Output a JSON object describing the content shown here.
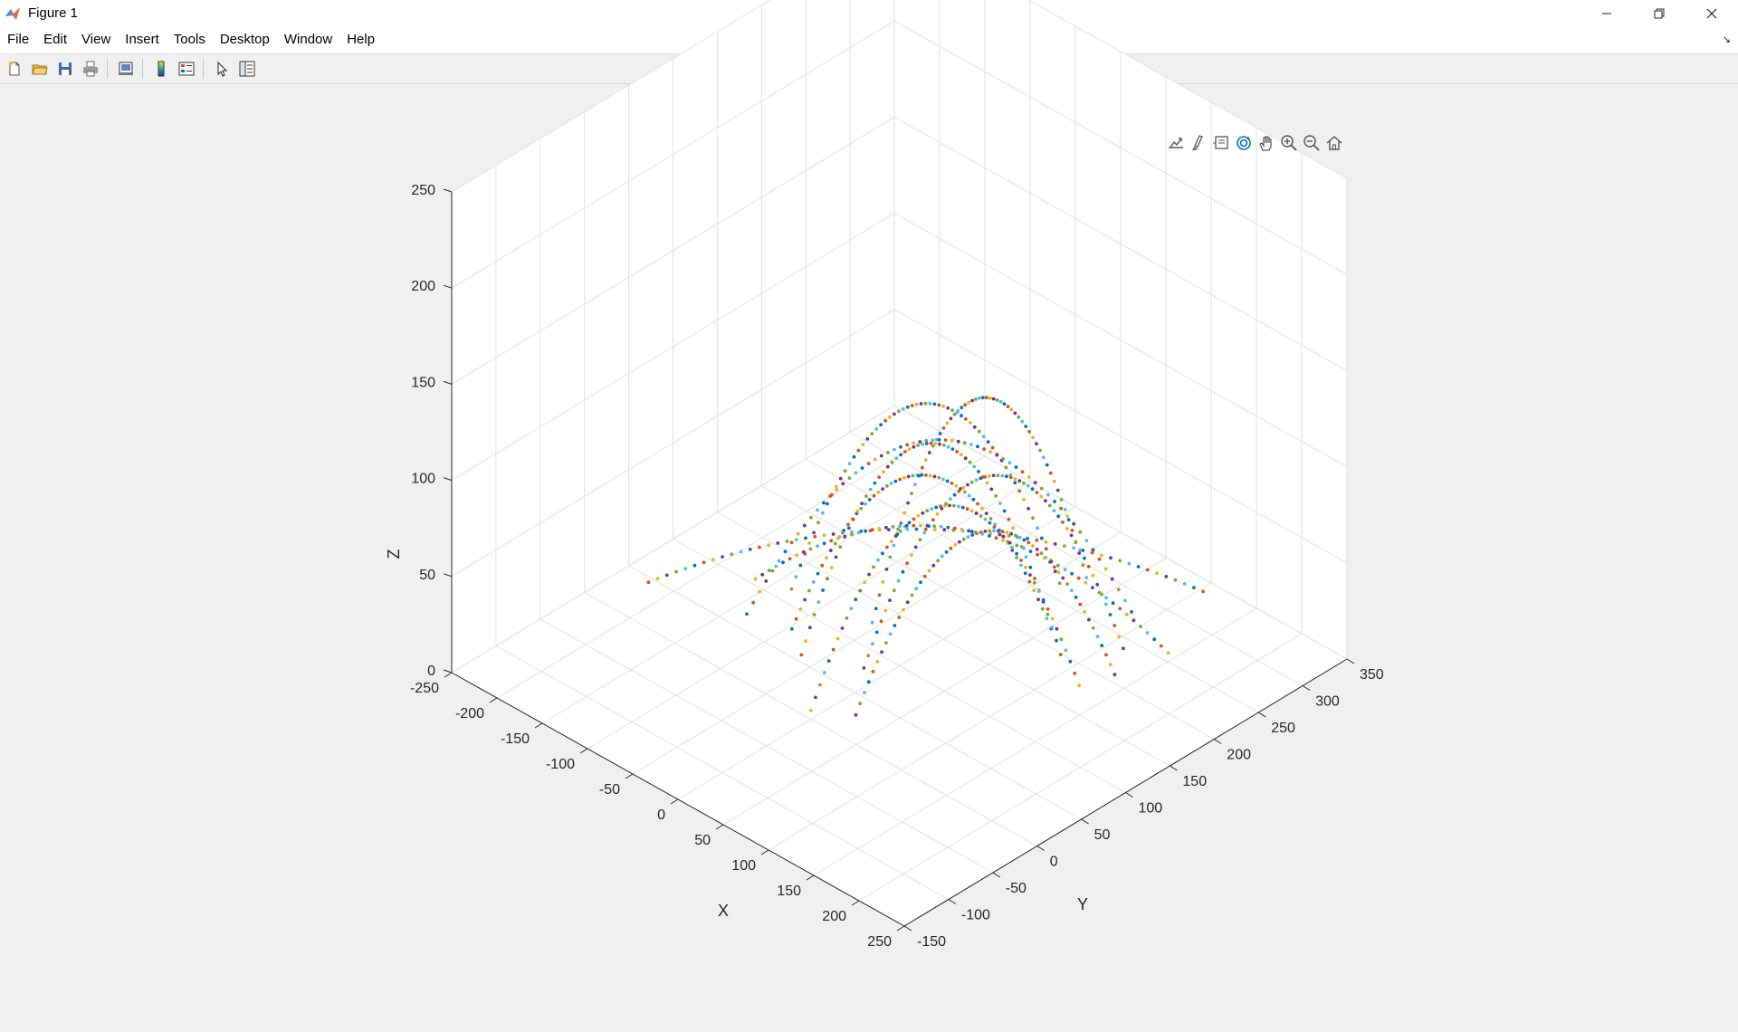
{
  "window": {
    "title": "Figure 1",
    "icons": {
      "app": "matlab-logo-icon",
      "minimize": "minimize-icon",
      "restore": "restore-icon",
      "close": "close-icon"
    }
  },
  "menubar": {
    "items": [
      "File",
      "Edit",
      "View",
      "Insert",
      "Tools",
      "Desktop",
      "Window",
      "Help"
    ]
  },
  "toolbar": {
    "buttons": [
      "new-figure-icon",
      "open-file-icon",
      "save-icon",
      "print-icon",
      "print-preview-icon",
      "colorbar-icon",
      "legend-icon",
      "edit-plot-icon",
      "property-inspector-icon"
    ]
  },
  "axes_toolbar": {
    "buttons": [
      "export-icon",
      "brush-icon",
      "data-tips-icon",
      "rotate-3d-icon",
      "pan-icon",
      "zoom-in-icon",
      "zoom-out-icon",
      "restore-view-icon"
    ],
    "active": "rotate-3d-icon",
    "active_color": "#0072bd"
  },
  "chart_data": {
    "type": "scatter",
    "dimensions": 3,
    "title": "",
    "xlabel": "X",
    "ylabel": "Y",
    "zlabel": "Z",
    "xlim": [
      -250,
      250
    ],
    "ylim": [
      -150,
      350
    ],
    "zlim": [
      0,
      250
    ],
    "xticks": [
      -250,
      -200,
      -150,
      -100,
      -50,
      0,
      50,
      100,
      150,
      200,
      250
    ],
    "yticks": [
      -150,
      -100,
      -50,
      0,
      50,
      100,
      150,
      200,
      250,
      300,
      350
    ],
    "zticks": [
      0,
      50,
      100,
      150,
      200,
      250
    ],
    "grid": true,
    "box": false,
    "marker_colors": [
      "#0072bd",
      "#d95319",
      "#edb120",
      "#7e2f8e",
      "#77ac30",
      "#4dbeee"
    ],
    "series": [
      {
        "start": [
          -60,
          40,
          20
        ],
        "end": [
          70,
          200,
          10
        ],
        "peak": 80
      },
      {
        "start": [
          -30,
          20,
          20
        ],
        "end": [
          100,
          180,
          10
        ],
        "peak": 110
      },
      {
        "start": [
          10,
          -10,
          10
        ],
        "end": [
          140,
          160,
          10
        ],
        "peak": 100
      },
      {
        "start": [
          40,
          10,
          10
        ],
        "end": [
          150,
          190,
          10
        ],
        "peak": 85
      },
      {
        "start": [
          -80,
          60,
          30
        ],
        "end": [
          50,
          230,
          20
        ],
        "peak": 95
      },
      {
        "start": [
          -20,
          90,
          20
        ],
        "end": [
          60,
          250,
          20
        ],
        "peak": 105
      },
      {
        "start": [
          -100,
          30,
          20
        ],
        "end": [
          100,
          260,
          10
        ],
        "peak": 90
      },
      {
        "start": [
          -150,
          -30,
          40
        ],
        "end": [
          140,
          300,
          20
        ],
        "peak": 30
      },
      {
        "start": [
          -110,
          50,
          30
        ],
        "end": [
          160,
          240,
          10
        ],
        "peak": 45
      },
      {
        "start": [
          0,
          60,
          10
        ],
        "end": [
          130,
          220,
          10
        ],
        "peak": 95
      }
    ]
  }
}
